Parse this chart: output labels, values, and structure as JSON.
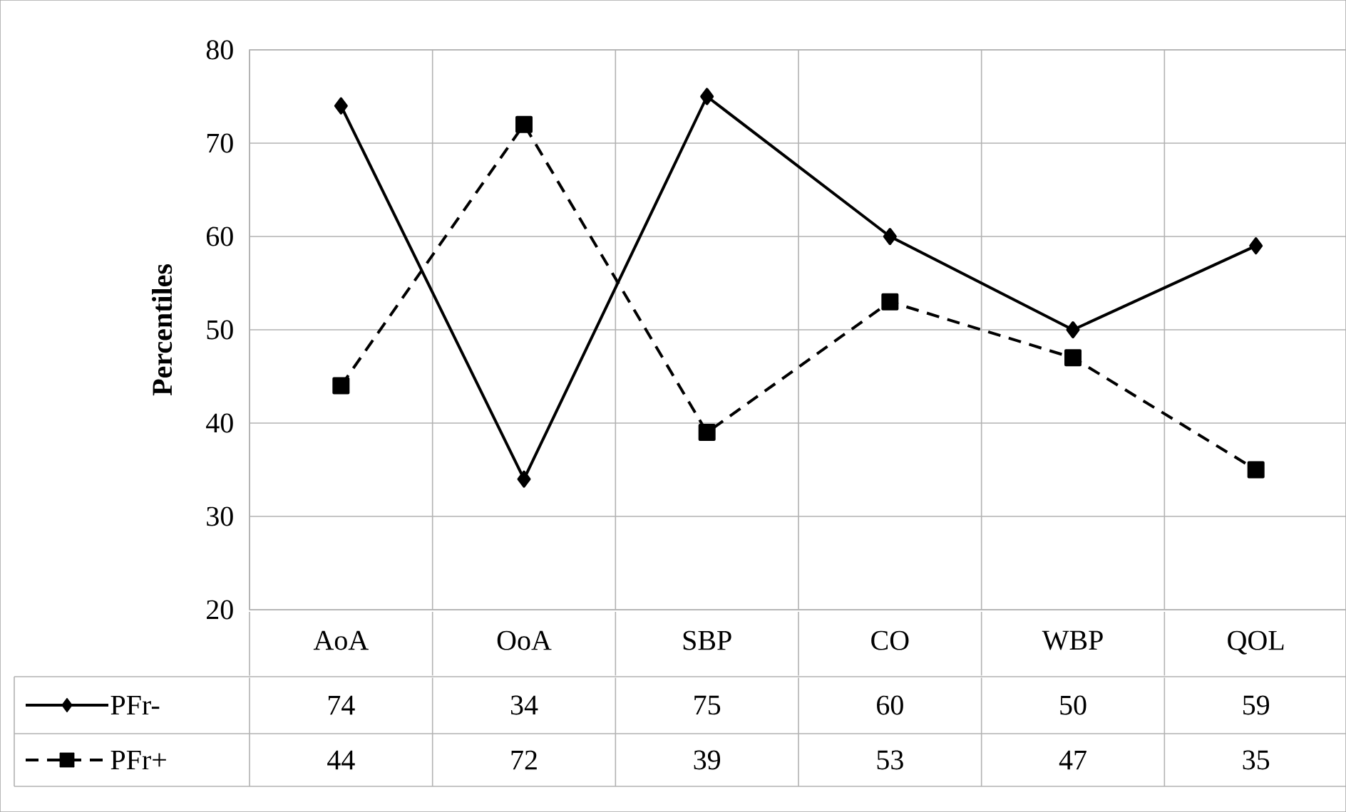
{
  "chart_data": {
    "type": "line",
    "ylabel": "Percentiles",
    "categories": [
      "AoA",
      "OoA",
      "SBP",
      "CO",
      "WBP",
      "QOL"
    ],
    "series": [
      {
        "name": "PFr-",
        "color": "#000000",
        "marker": "diamond",
        "line_style": "solid",
        "values": [
          74,
          34,
          75,
          60,
          50,
          59
        ]
      },
      {
        "name": "PFr+",
        "color": "#000000",
        "marker": "square",
        "line_style": "dashed",
        "values": [
          44,
          72,
          39,
          53,
          47,
          35
        ]
      }
    ],
    "ylim": [
      20,
      80
    ],
    "yticks": [
      20,
      30,
      40,
      50,
      60,
      70,
      80
    ],
    "grid": true,
    "legend": "bottom",
    "data_labels": true
  }
}
